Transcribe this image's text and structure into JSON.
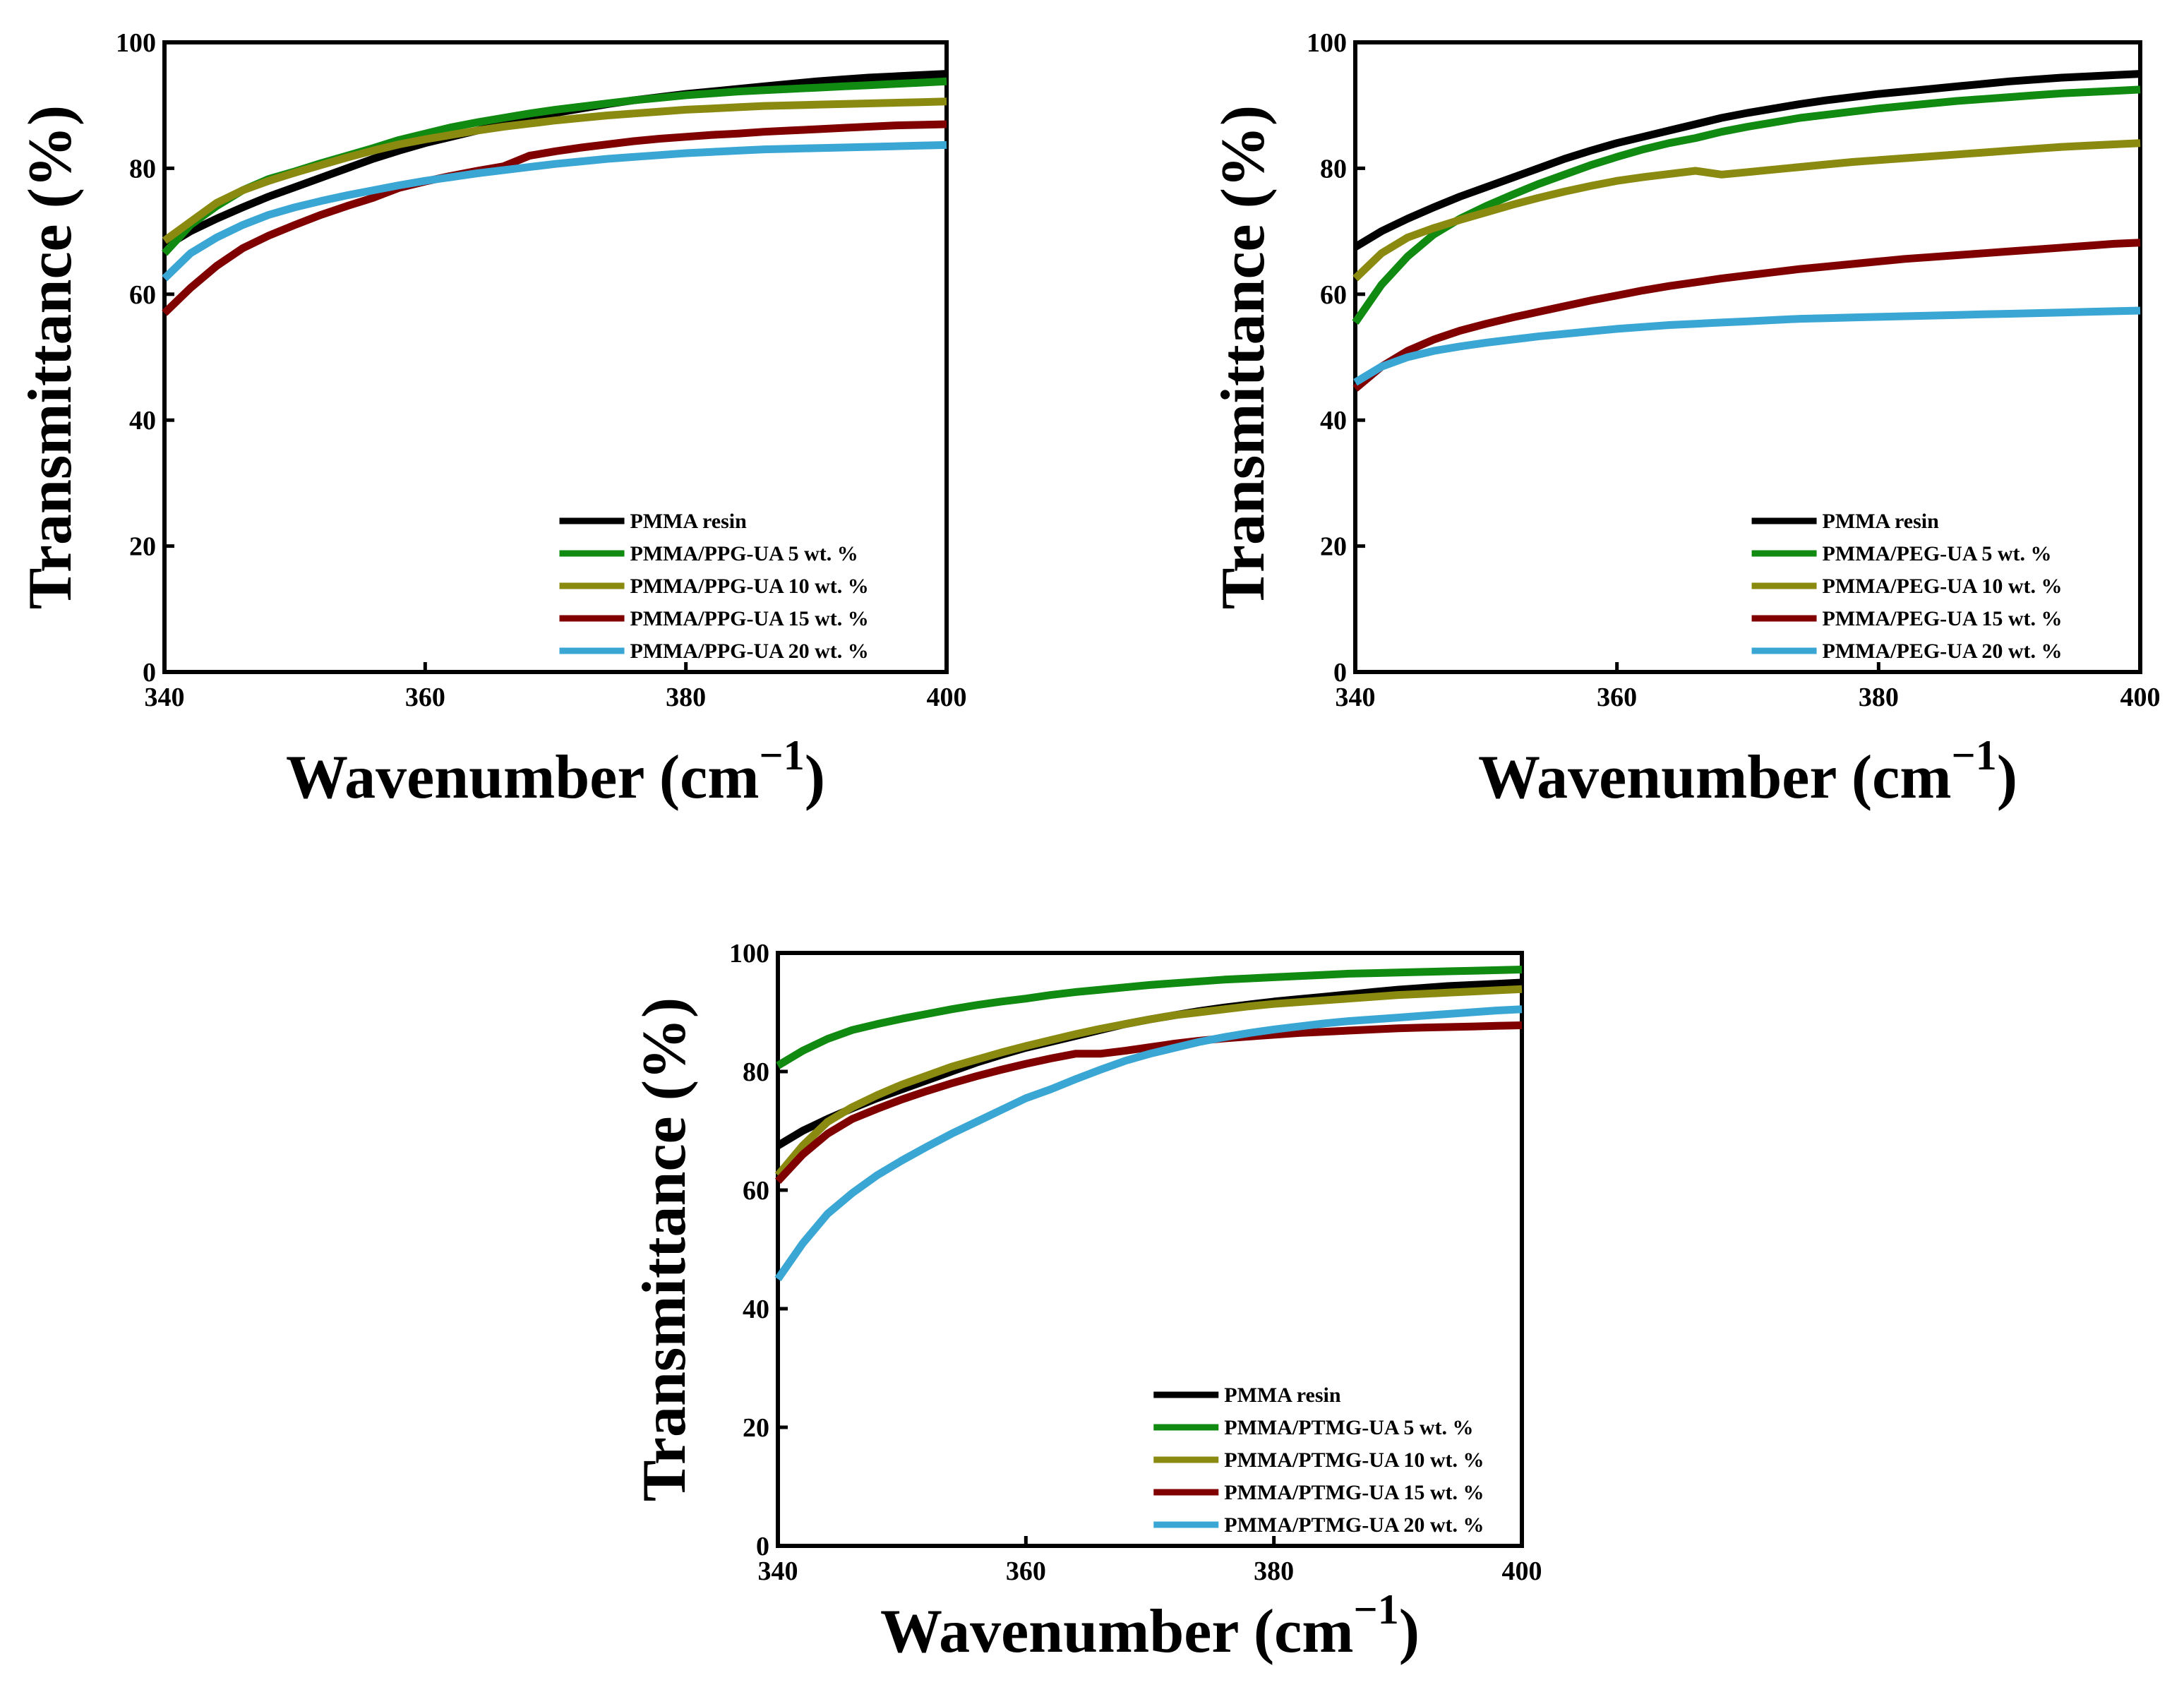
{
  "chart_data": [
    {
      "type": "line",
      "xlabel": "Wavenumber (cm",
      "xlabel_sup": "−1",
      "xlabel_close": ")",
      "ylabel": "Transmittance (%)",
      "xlim": [
        340,
        400
      ],
      "ylim": [
        0,
        100
      ],
      "xticks": [
        "340",
        "360",
        "380",
        "400"
      ],
      "yticks": [
        "0",
        "20",
        "40",
        "60",
        "80",
        "100"
      ],
      "legend_position": "bottom-right",
      "x": [
        340,
        342,
        344,
        346,
        348,
        350,
        352,
        354,
        356,
        358,
        360,
        362,
        364,
        366,
        368,
        370,
        372,
        374,
        376,
        378,
        380,
        382,
        384,
        386,
        388,
        390,
        392,
        394,
        396,
        398,
        400
      ],
      "series": [
        {
          "name": "PMMA resin",
          "color": "#000000",
          "values": [
            67.5,
            70,
            72,
            73.8,
            75.5,
            77,
            78.5,
            80,
            81.5,
            82.8,
            84,
            85,
            86,
            87,
            88,
            88.8,
            89.5,
            90.2,
            90.8,
            91.3,
            91.8,
            92.2,
            92.6,
            93,
            93.4,
            93.8,
            94.1,
            94.4,
            94.6,
            94.8,
            95
          ]
        },
        {
          "name": "PMMA/PPG-UA 5 wt. %",
          "color": "#108a10",
          "values": [
            66.5,
            71,
            74,
            76.5,
            78.3,
            79.5,
            80.8,
            82,
            83.2,
            84.5,
            85.5,
            86.5,
            87.3,
            88,
            88.7,
            89.3,
            89.8,
            90.3,
            90.8,
            91.2,
            91.6,
            91.9,
            92.2,
            92.4,
            92.6,
            92.8,
            93,
            93.2,
            93.4,
            93.6,
            93.8
          ]
        },
        {
          "name": "PMMA/PPG-UA 10 wt. %",
          "color": "#8a8a10",
          "values": [
            68.5,
            71.5,
            74.5,
            76.5,
            78,
            79.3,
            80.5,
            81.7,
            82.8,
            83.8,
            84.6,
            85.3,
            86,
            86.6,
            87.1,
            87.6,
            88,
            88.4,
            88.7,
            89,
            89.3,
            89.5,
            89.7,
            89.9,
            90,
            90.1,
            90.2,
            90.3,
            90.4,
            90.5,
            90.6
          ]
        },
        {
          "name": "PMMA/PPG-UA 15 wt. %",
          "color": "#800000",
          "values": [
            57,
            61,
            64.5,
            67.3,
            69.3,
            71,
            72.6,
            74,
            75.3,
            76.9,
            77.9,
            78.8,
            79.6,
            80.3,
            82,
            82.7,
            83.3,
            83.8,
            84.3,
            84.7,
            85,
            85.3,
            85.5,
            85.8,
            86,
            86.2,
            86.4,
            86.6,
            86.8,
            86.9,
            87
          ]
        },
        {
          "name": "PMMA/PPG-UA 20 wt. %",
          "color": "#3aa6d4",
          "values": [
            62.5,
            66.5,
            69,
            71,
            72.6,
            73.8,
            74.8,
            75.7,
            76.5,
            77.3,
            78,
            78.6,
            79.2,
            79.7,
            80.2,
            80.7,
            81.1,
            81.5,
            81.8,
            82.1,
            82.4,
            82.6,
            82.8,
            83,
            83.1,
            83.2,
            83.3,
            83.4,
            83.5,
            83.6,
            83.7
          ]
        }
      ]
    },
    {
      "type": "line",
      "xlabel": "Wavenumber (cm",
      "xlabel_sup": "−1",
      "xlabel_close": ")",
      "ylabel": "Transmittance (%)",
      "xlim": [
        340,
        400
      ],
      "ylim": [
        0,
        100
      ],
      "xticks": [
        "340",
        "360",
        "380",
        "400"
      ],
      "yticks": [
        "0",
        "20",
        "40",
        "60",
        "80",
        "100"
      ],
      "legend_position": "bottom-right",
      "x": [
        340,
        342,
        344,
        346,
        348,
        350,
        352,
        354,
        356,
        358,
        360,
        362,
        364,
        366,
        368,
        370,
        372,
        374,
        376,
        378,
        380,
        382,
        384,
        386,
        388,
        390,
        392,
        394,
        396,
        398,
        400
      ],
      "series": [
        {
          "name": "PMMA resin",
          "color": "#000000",
          "values": [
            67.5,
            70,
            72,
            73.8,
            75.5,
            77,
            78.5,
            80,
            81.5,
            82.8,
            84,
            85,
            86,
            87,
            88,
            88.8,
            89.5,
            90.2,
            90.8,
            91.3,
            91.8,
            92.2,
            92.6,
            93,
            93.4,
            93.8,
            94.1,
            94.4,
            94.6,
            94.8,
            95
          ]
        },
        {
          "name": "PMMA/PEG-UA 5 wt. %",
          "color": "#108a10",
          "values": [
            55.5,
            61.5,
            66,
            69.5,
            72,
            74,
            75.8,
            77.5,
            79,
            80.5,
            81.8,
            83,
            84,
            84.8,
            85.8,
            86.6,
            87.3,
            88,
            88.5,
            89,
            89.5,
            89.9,
            90.3,
            90.7,
            91,
            91.3,
            91.6,
            91.9,
            92.1,
            92.3,
            92.5
          ]
        },
        {
          "name": "PMMA/PEG-UA 10 wt. %",
          "color": "#8a8a10",
          "values": [
            62.5,
            66.5,
            69,
            70.5,
            71.8,
            73,
            74.2,
            75.3,
            76.3,
            77.2,
            78,
            78.6,
            79.1,
            79.6,
            79,
            79.4,
            79.8,
            80.2,
            80.6,
            81,
            81.3,
            81.6,
            81.9,
            82.2,
            82.5,
            82.8,
            83.1,
            83.4,
            83.6,
            83.8,
            84
          ]
        },
        {
          "name": "PMMA/PEG-UA 15 wt. %",
          "color": "#800000",
          "values": [
            45,
            48.5,
            51,
            52.8,
            54.2,
            55.3,
            56.3,
            57.2,
            58.1,
            59,
            59.8,
            60.6,
            61.3,
            61.9,
            62.5,
            63,
            63.5,
            64,
            64.4,
            64.8,
            65.2,
            65.6,
            65.9,
            66.2,
            66.5,
            66.8,
            67.1,
            67.4,
            67.7,
            68,
            68.2
          ]
        },
        {
          "name": "PMMA/PEG-UA 20 wt. %",
          "color": "#3aa6d4",
          "values": [
            46,
            48.5,
            50,
            51,
            51.7,
            52.3,
            52.8,
            53.3,
            53.7,
            54.1,
            54.5,
            54.8,
            55.1,
            55.3,
            55.5,
            55.7,
            55.9,
            56.1,
            56.2,
            56.3,
            56.4,
            56.5,
            56.6,
            56.7,
            56.8,
            56.9,
            57,
            57.1,
            57.2,
            57.3,
            57.4
          ]
        }
      ]
    },
    {
      "type": "line",
      "xlabel": "Wavenumber (cm",
      "xlabel_sup": "−1",
      "xlabel_close": ")",
      "ylabel": "Transmittance (%)",
      "xlim": [
        340,
        400
      ],
      "ylim": [
        0,
        100
      ],
      "xticks": [
        "340",
        "360",
        "380",
        "400"
      ],
      "yticks": [
        "0",
        "20",
        "40",
        "60",
        "80",
        "100"
      ],
      "legend_position": "bottom-right",
      "x": [
        340,
        342,
        344,
        346,
        348,
        350,
        352,
        354,
        356,
        358,
        360,
        362,
        364,
        366,
        368,
        370,
        372,
        374,
        376,
        378,
        380,
        382,
        384,
        386,
        388,
        390,
        392,
        394,
        396,
        398,
        400
      ],
      "series": [
        {
          "name": "PMMA resin",
          "color": "#000000",
          "values": [
            67.5,
            70,
            72,
            73.8,
            75.5,
            77,
            78.5,
            80,
            81.5,
            82.8,
            84,
            85,
            86,
            87,
            88,
            88.8,
            89.5,
            90.2,
            90.8,
            91.3,
            91.8,
            92.2,
            92.6,
            93,
            93.4,
            93.8,
            94.1,
            94.4,
            94.6,
            94.8,
            95
          ]
        },
        {
          "name": "PMMA/PTMG-UA 5 wt. %",
          "color": "#108a10",
          "values": [
            81,
            83.5,
            85.5,
            87,
            88,
            88.9,
            89.7,
            90.5,
            91.2,
            91.8,
            92.3,
            92.9,
            93.4,
            93.8,
            94.2,
            94.6,
            94.9,
            95.2,
            95.5,
            95.7,
            95.9,
            96.1,
            96.3,
            96.5,
            96.6,
            96.7,
            96.8,
            96.9,
            97,
            97.1,
            97.2
          ]
        },
        {
          "name": "PMMA/PTMG-UA 10 wt. %",
          "color": "#8a8a10",
          "values": [
            62.5,
            67.5,
            71.5,
            74,
            76,
            77.8,
            79.3,
            80.8,
            82,
            83.2,
            84.3,
            85.3,
            86.3,
            87.2,
            88,
            88.8,
            89.5,
            90,
            90.5,
            91,
            91.4,
            91.7,
            92,
            92.3,
            92.6,
            92.9,
            93.1,
            93.3,
            93.5,
            93.7,
            93.9
          ]
        },
        {
          "name": "PMMA/PTMG-UA 15 wt. %",
          "color": "#800000",
          "values": [
            61.5,
            66,
            69.5,
            72,
            73.7,
            75.3,
            76.7,
            78,
            79.2,
            80.3,
            81.3,
            82.2,
            83,
            83,
            83.5,
            84.1,
            84.7,
            85.2,
            85.6,
            85.9,
            86.2,
            86.5,
            86.7,
            86.9,
            87.1,
            87.3,
            87.4,
            87.5,
            87.6,
            87.7,
            87.8
          ]
        },
        {
          "name": "PMMA/PTMG-UA 20 wt. %",
          "color": "#3aa6d4",
          "values": [
            45,
            51,
            56,
            59.5,
            62.5,
            65,
            67.3,
            69.5,
            71.5,
            73.5,
            75.5,
            77,
            78.7,
            80.3,
            81.8,
            83,
            84,
            85,
            85.8,
            86.5,
            87.1,
            87.6,
            88.1,
            88.5,
            88.8,
            89.1,
            89.4,
            89.7,
            90,
            90.3,
            90.5
          ]
        }
      ]
    }
  ]
}
